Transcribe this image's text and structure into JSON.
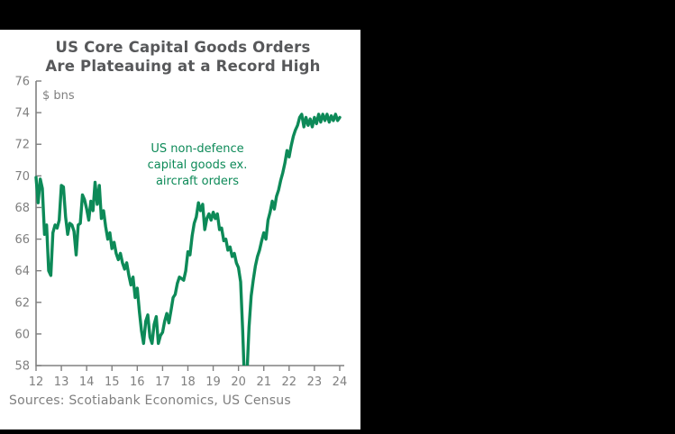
{
  "title": {
    "line1": "US Core Capital Goods Orders",
    "line2": "Are Plateauing at a Record High"
  },
  "axis_unit_label": "$ bns",
  "annotation": {
    "lines": [
      "US non-defence",
      "capital goods ex.",
      "aircraft orders"
    ]
  },
  "source_note": "Sources: Scotiabank Economics, US Census",
  "colors": {
    "line": "#0d8a58",
    "title": "#57585a",
    "axis": "#808080",
    "muted_text": "#7f7f7f",
    "panel_bg": "#ffffff",
    "screen_bg": "#000000"
  },
  "chart_data": {
    "type": "line",
    "title": "US Core Capital Goods Orders Are Plateauing at a Record High",
    "ylabel": "$ bns",
    "series_name": "US non-defence capital goods ex. aircraft orders",
    "frequency": "monthly",
    "x_start_year": 2012,
    "xlim": [
      12,
      24.2
    ],
    "ylim": [
      58,
      76
    ],
    "y_ticks": [
      58,
      60,
      62,
      64,
      66,
      68,
      70,
      72,
      74,
      76
    ],
    "x_ticks": [
      12,
      13,
      14,
      15,
      16,
      17,
      18,
      19,
      20,
      21,
      22,
      23,
      24
    ],
    "grid": false,
    "legend": "none",
    "values": [
      69.9,
      68.3,
      69.8,
      69.2,
      66.3,
      66.9,
      64.0,
      63.7,
      66.4,
      66.9,
      66.7,
      67.2,
      69.4,
      69.3,
      67.4,
      66.3,
      67.0,
      66.9,
      66.5,
      65.0,
      66.9,
      67.0,
      68.8,
      68.5,
      67.9,
      67.2,
      68.4,
      67.8,
      69.6,
      68.2,
      69.4,
      67.3,
      67.8,
      66.8,
      66.0,
      66.4,
      65.4,
      65.8,
      65.1,
      64.7,
      65.1,
      64.5,
      64.1,
      64.5,
      63.7,
      63.1,
      63.6,
      62.3,
      62.9,
      61.4,
      60.2,
      59.4,
      60.8,
      61.2,
      59.8,
      59.4,
      60.6,
      61.1,
      59.4,
      59.9,
      60.1,
      60.8,
      61.3,
      60.7,
      61.5,
      62.3,
      62.5,
      63.2,
      63.6,
      63.5,
      63.4,
      64.0,
      65.2,
      65.0,
      66.2,
      67.0,
      67.4,
      68.3,
      67.8,
      68.2,
      66.6,
      67.3,
      67.6,
      67.2,
      67.7,
      67.3,
      67.6,
      66.6,
      66.7,
      65.9,
      66.0,
      65.3,
      65.5,
      64.9,
      65.1,
      64.5,
      64.2,
      63.3,
      60.2,
      56.3,
      57.4,
      60.4,
      62.4,
      63.4,
      64.3,
      64.9,
      65.3,
      65.9,
      66.4,
      66.0,
      67.2,
      67.7,
      68.4,
      67.9,
      68.7,
      69.1,
      69.7,
      70.2,
      70.8,
      71.6,
      71.2,
      71.9,
      72.5,
      72.9,
      73.2,
      73.7,
      73.9,
      73.1,
      73.7,
      73.2,
      73.6,
      73.1,
      73.7,
      73.3,
      73.9,
      73.4,
      73.9,
      73.5,
      73.9,
      73.4,
      73.8,
      73.5,
      73.9,
      73.5,
      73.7
    ]
  }
}
